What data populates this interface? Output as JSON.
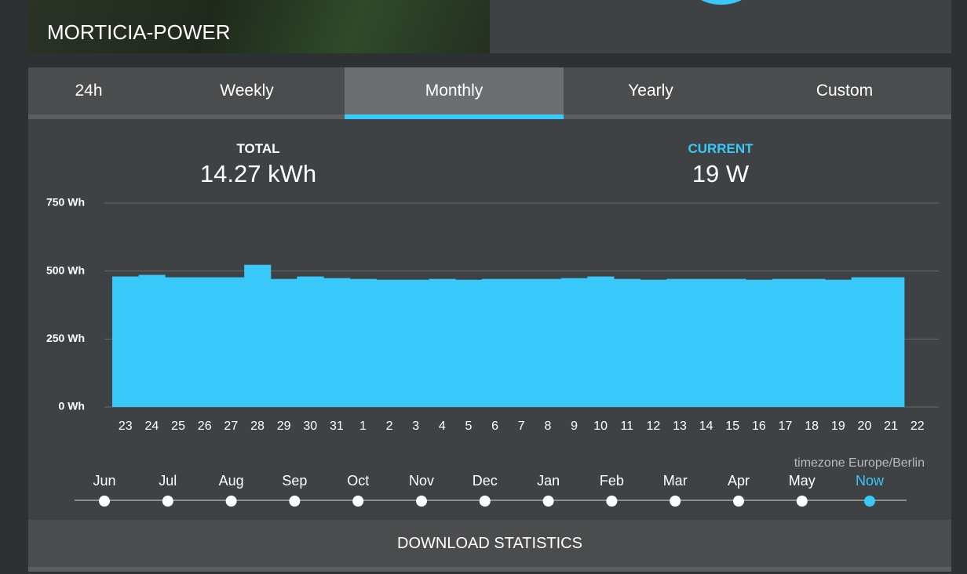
{
  "header": {
    "title": "MORTICIA-POWER"
  },
  "tabs": [
    "24h",
    "Weekly",
    "Monthly",
    "Yearly",
    "Custom"
  ],
  "stats": {
    "total_label": "TOTAL",
    "total_value": "14.27 kWh",
    "current_label": "CURRENT",
    "current_value": "19 W"
  },
  "chart_data": {
    "type": "bar",
    "color": "#38c8fa",
    "categories": [
      "23",
      "24",
      "25",
      "26",
      "27",
      "28",
      "29",
      "30",
      "31",
      "1",
      "2",
      "3",
      "4",
      "5",
      "6",
      "7",
      "8",
      "9",
      "10",
      "11",
      "12",
      "13",
      "14",
      "15",
      "16",
      "17",
      "18",
      "19",
      "20",
      "21",
      "22"
    ],
    "values": [
      480,
      486,
      477,
      477,
      477,
      523,
      471,
      480,
      474,
      471,
      468,
      468,
      471,
      468,
      471,
      471,
      471,
      474,
      480,
      471,
      468,
      471,
      471,
      471,
      468,
      471,
      471,
      468,
      477,
      477,
      null
    ],
    "ylim": [
      0,
      750
    ],
    "yticks": [
      {
        "value": 0,
        "label": "0 Wh"
      },
      {
        "value": 250,
        "label": "250 Wh"
      },
      {
        "value": 500,
        "label": "500 Wh"
      },
      {
        "value": 750,
        "label": "750 Wh"
      }
    ],
    "grid": true
  },
  "timeline": {
    "timezone": "timezone Europe/Berlin",
    "labels": [
      "Jun",
      "Jul",
      "Aug",
      "Sep",
      "Oct",
      "Nov",
      "Dec",
      "Jan",
      "Feb",
      "Mar",
      "Apr",
      "May",
      "Now"
    ]
  },
  "button": "DOWNLOAD STATISTICS"
}
